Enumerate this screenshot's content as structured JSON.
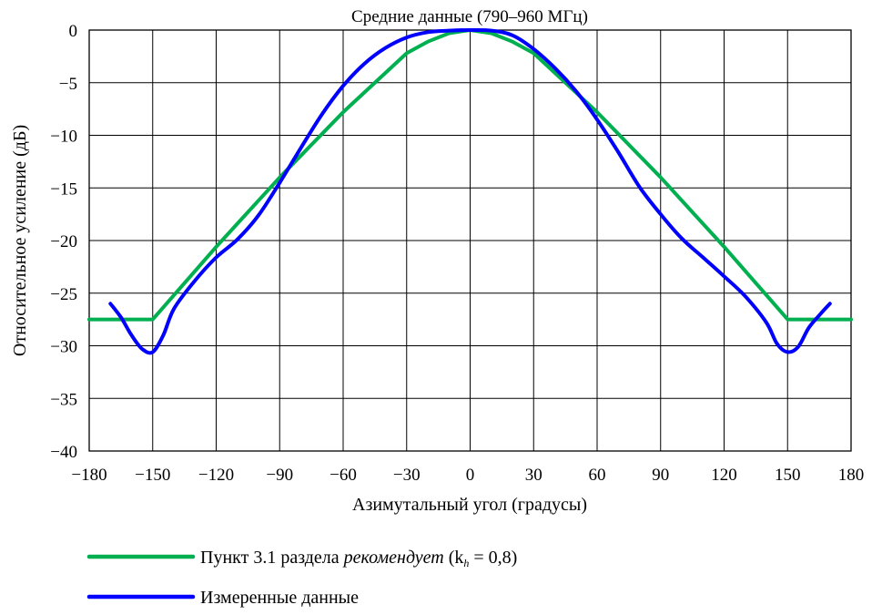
{
  "chart_data": {
    "type": "line",
    "title": "Средние данные (790–960 МГц)",
    "xlabel": "Азимутальный угол (градусы)",
    "ylabel": "Относительное усиление (дБ)",
    "xlim": [
      -180,
      180
    ],
    "ylim": [
      -40,
      0
    ],
    "xticks": [
      -180,
      -150,
      -120,
      -90,
      -60,
      -30,
      0,
      30,
      60,
      90,
      120,
      150,
      180
    ],
    "yticks": [
      0,
      -5,
      -10,
      -15,
      -20,
      -25,
      -30,
      -35,
      -40
    ],
    "xtick_labels": [
      "−180",
      "−150",
      "−120",
      "−90",
      "−60",
      "−30",
      "0",
      "30",
      "60",
      "90",
      "120",
      "150",
      "180"
    ],
    "ytick_labels": [
      "0",
      "−5",
      "−10",
      "−15",
      "−20",
      "−25",
      "−30",
      "−35",
      "−40"
    ],
    "grid": true,
    "legend_position": "bottom-left",
    "series": [
      {
        "name_prefix": "Пункт 3.1 раздела ",
        "name_italic": "рекомендует",
        "name_suffix": " (k",
        "name_sub": "h",
        "name_tail": " = 0,8)",
        "color": "#00b050",
        "x": [
          -180,
          -150,
          -120,
          -90,
          -60,
          -30,
          -20,
          -10,
          0,
          10,
          20,
          30,
          60,
          90,
          120,
          150,
          180
        ],
        "y": [
          -27.5,
          -27.5,
          -20.6,
          -14,
          -7.8,
          -2.2,
          -1.1,
          -0.3,
          0,
          -0.3,
          -1.1,
          -2.2,
          -7.8,
          -14,
          -20.6,
          -27.5,
          -27.5
        ]
      },
      {
        "name": "Измеренные данные",
        "color": "#0000ff",
        "x": [
          -170,
          -165,
          -160,
          -155,
          -150,
          -145,
          -140,
          -130,
          -120,
          -110,
          -100,
          -90,
          -80,
          -70,
          -60,
          -50,
          -40,
          -30,
          -20,
          -10,
          0,
          10,
          20,
          30,
          40,
          50,
          60,
          70,
          80,
          90,
          100,
          110,
          120,
          130,
          140,
          145,
          150,
          155,
          160,
          165,
          170
        ],
        "y": [
          -26,
          -27.3,
          -29,
          -30.3,
          -30.6,
          -29,
          -26.5,
          -23.8,
          -21.6,
          -19.9,
          -17.6,
          -14.5,
          -11.2,
          -8,
          -5.3,
          -3.2,
          -1.7,
          -0.7,
          -0.2,
          -0.05,
          0,
          -0.05,
          -0.5,
          -1.8,
          -3.6,
          -5.8,
          -8.5,
          -11.6,
          -14.9,
          -17.5,
          -19.8,
          -21.6,
          -23.4,
          -25.3,
          -27.8,
          -29.8,
          -30.6,
          -30.1,
          -28.3,
          -27.1,
          -26
        ]
      }
    ]
  }
}
